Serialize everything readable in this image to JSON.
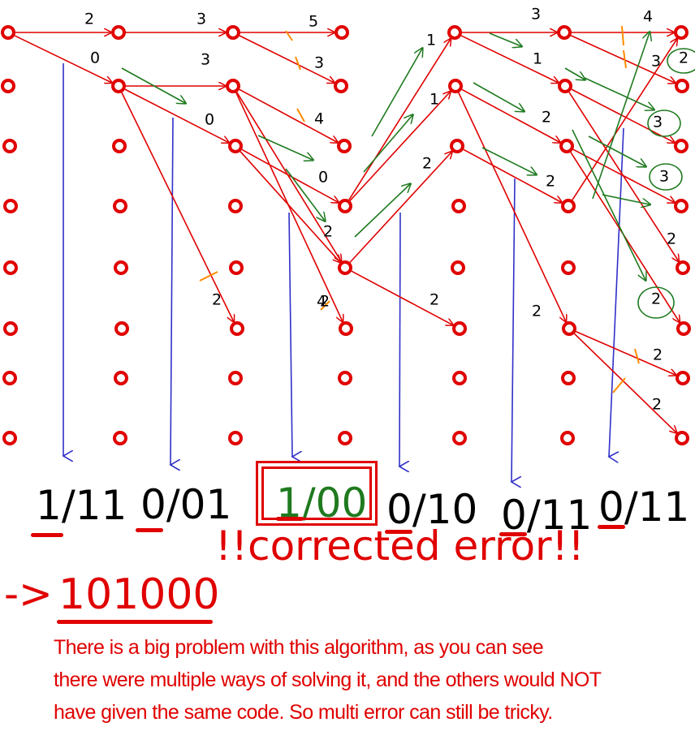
{
  "trellis": {
    "edge_labels": [
      "2",
      "3",
      "5",
      "0",
      "3",
      "3",
      "0",
      "4",
      "0",
      "2",
      "2",
      "4",
      "1",
      "1",
      "2",
      "3",
      "1",
      "3",
      "2",
      "2",
      "2",
      "2",
      "4",
      "2",
      "3",
      "3",
      "2",
      "2",
      "2",
      "2",
      "2"
    ]
  },
  "decoded_steps": [
    {
      "bit": "1",
      "rest": "/11"
    },
    {
      "bit": "0",
      "rest": "/01"
    },
    {
      "bit": "1",
      "rest": "/00"
    },
    {
      "bit": "0",
      "rest": "/10"
    },
    {
      "bit": "0",
      "rest": "/11"
    },
    {
      "bit": "0",
      "rest": "/11"
    }
  ],
  "correction_label": "!!corrected error!!",
  "result": {
    "arrow": "->",
    "value": "101000"
  },
  "note": [
    "There is a big problem with this algorithm, as you can see",
    "there were multiple ways of solving it, and the others would NOT",
    "have given the same code. So multi error can still be tricky."
  ],
  "colors": {
    "path": "#e00000",
    "survivor": "#1f7a1f",
    "readout": "#3030c8",
    "cut": "#ff8c00",
    "text": "#000000"
  }
}
